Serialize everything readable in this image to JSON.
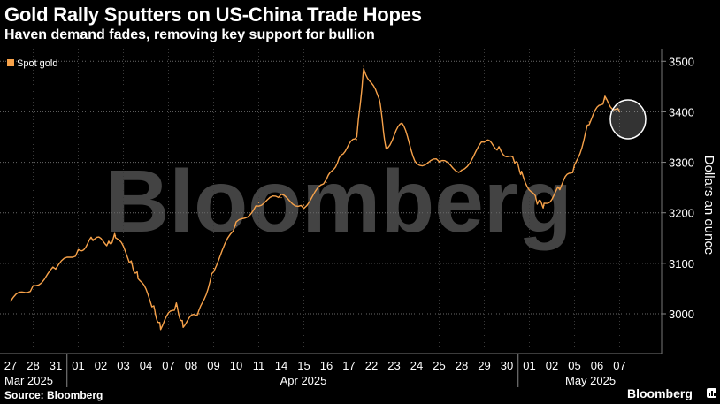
{
  "header": {
    "title": "Gold Rally Sputters on US-China Trade Hopes",
    "subtitle": "Haven demand fades, removing key support for bullion"
  },
  "footer": {
    "source": "Source: Bloomberg",
    "brand": "Bloomberg"
  },
  "watermark": "Bloomberg",
  "colors": {
    "line": "#f7a24a",
    "background": "#000000",
    "grid": "#555555",
    "text": "#ffffff"
  },
  "chart_data": {
    "type": "line",
    "title": "Gold Rally Sputters on US-China Trade Hopes",
    "subtitle": "Haven demand fades, removing key support for bullion",
    "ylabel": "Dollars an ounce",
    "ylim": [
      2930,
      3525
    ],
    "yticks": [
      3000,
      3100,
      3200,
      3300,
      3400,
      3500
    ],
    "grid": true,
    "legend": {
      "entries": [
        "Spot gold"
      ],
      "placement": "top-left"
    },
    "x_tick_labels": [
      "27",
      "28",
      "31",
      "01",
      "02",
      "03",
      "04",
      "07",
      "08",
      "09",
      "10",
      "11",
      "14",
      "15",
      "16",
      "17",
      "22",
      "23",
      "24",
      "25",
      "28",
      "29",
      "30",
      "01",
      "02",
      "05",
      "06",
      "07"
    ],
    "x_month_labels": [
      "Mar 2025",
      "Apr 2025",
      "May 2025"
    ],
    "annotation": "circle-highlight",
    "series": [
      {
        "name": "Spot gold",
        "color": "#f7a24a",
        "x": [
          "Mar 27",
          "Mar 28",
          "Mar 31",
          "Apr 01",
          "Apr 02",
          "Apr 02",
          "Apr 03",
          "Apr 03",
          "Apr 04",
          "Apr 04",
          "Apr 07",
          "Apr 07",
          "Apr 08",
          "Apr 08",
          "Apr 09",
          "Apr 10",
          "Apr 11",
          "Apr 14",
          "Apr 15",
          "Apr 16",
          "Apr 17",
          "Apr 17",
          "Apr 22",
          "Apr 22",
          "Apr 23",
          "Apr 23",
          "Apr 24",
          "Apr 25",
          "Apr 28",
          "Apr 29",
          "Apr 30",
          "Apr 30",
          "May 01",
          "May 01",
          "May 02",
          "May 02",
          "May 05",
          "May 06",
          "May 06",
          "May 07"
        ],
        "values": [
          3025,
          3055,
          3090,
          3125,
          3148,
          3140,
          3155,
          3100,
          3075,
          3010,
          2975,
          3015,
          2980,
          3000,
          3090,
          3175,
          3220,
          3230,
          3215,
          3260,
          3320,
          3345,
          3490,
          3420,
          3330,
          3375,
          3300,
          3300,
          3285,
          3340,
          3330,
          3300,
          3280,
          3220,
          3215,
          3250,
          3290,
          3380,
          3425,
          3400
        ]
      }
    ]
  }
}
